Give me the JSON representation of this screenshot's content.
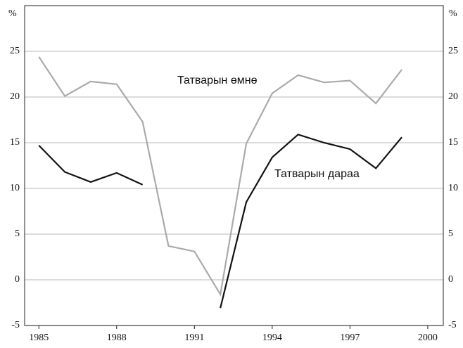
{
  "chart_data": {
    "type": "line",
    "y_label": "%",
    "x": [
      1985,
      1986,
      1987,
      1988,
      1989,
      1990,
      1991,
      1992,
      1993,
      1994,
      1995,
      1996,
      1997,
      1998,
      1999
    ],
    "series": [
      {
        "name": "Татварын өмнө",
        "color": "#aaaaaa",
        "values": [
          24.4,
          20.1,
          21.7,
          21.4,
          17.3,
          3.7,
          3.1,
          -1.6,
          14.9,
          20.4,
          22.4,
          21.6,
          21.8,
          19.3,
          23.0
        ]
      },
      {
        "name": "Татварын дараа",
        "color": "#111111",
        "values": [
          14.7,
          11.8,
          10.7,
          11.7,
          10.4,
          null,
          null,
          -3.1,
          8.5,
          13.4,
          15.9,
          15.0,
          14.3,
          12.2,
          15.6
        ]
      }
    ],
    "xlim": [
      1984.45,
      2000.6
    ],
    "xticks": [
      1985,
      1988,
      1991,
      1994,
      1997,
      2000
    ],
    "ylim": [
      -5,
      30
    ],
    "yticks": [
      -5,
      0,
      5,
      10,
      15,
      20,
      25
    ],
    "grid": true
  }
}
